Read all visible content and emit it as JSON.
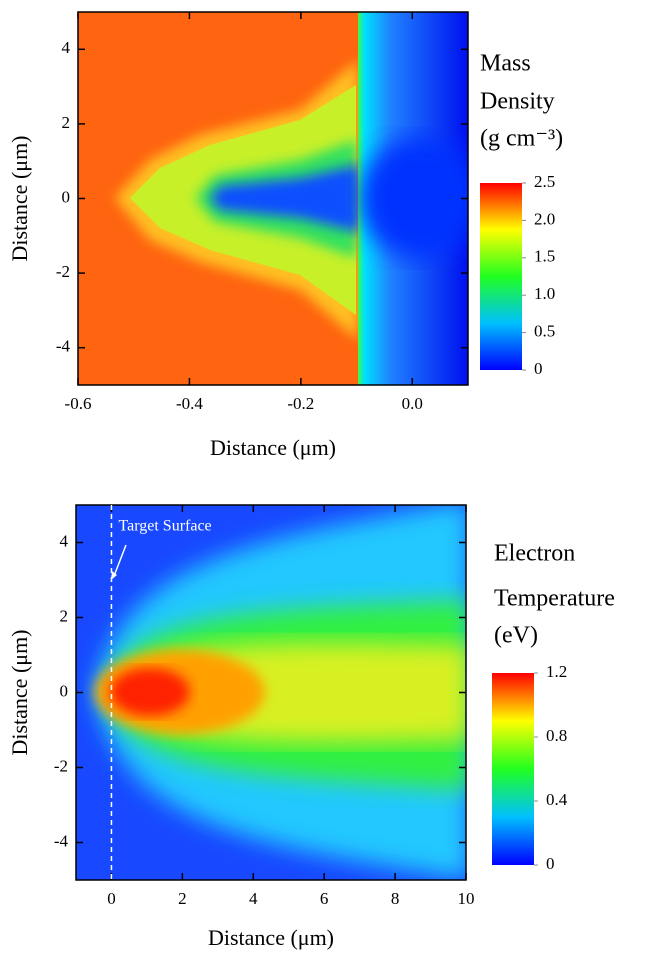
{
  "chart_data": [
    {
      "type": "heatmap",
      "xlabel": "Distance (μm)",
      "ylabel": "Distance (μm)",
      "xlim": [
        -0.6,
        0.1
      ],
      "xticks": [
        -0.6,
        -0.4,
        -0.2,
        {
          "value": 0,
          "label": "0.0"
        }
      ],
      "ylim": [
        -5,
        5
      ],
      "yticks": [
        -4,
        -2,
        0,
        2,
        4
      ],
      "colorbar_title": [
        "Mass",
        "Density",
        "(g cm⁻³)"
      ],
      "colorbar_lim": [
        0,
        2.5
      ],
      "colorbar_ticks": [
        0,
        {
          "value": 0.5,
          "label": "0.5"
        },
        {
          "value": 1,
          "label": "1.0"
        },
        {
          "value": 1.5,
          "label": "1.5"
        },
        {
          "value": 2,
          "label": "2.0"
        },
        {
          "value": 2.5,
          "label": "2.5"
        }
      ]
    },
    {
      "type": "heatmap",
      "xlabel": "Distance (μm)",
      "ylabel": "Distance (μm)",
      "xlim": [
        -1,
        10
      ],
      "xticks": [
        0,
        2,
        4,
        6,
        8,
        10
      ],
      "ylim": [
        -5,
        5
      ],
      "yticks": [
        -4,
        -2,
        0,
        2,
        4
      ],
      "colorbar_title": [
        "Electron",
        "Temperature",
        "(eV)"
      ],
      "colorbar_lim": [
        0,
        1.2
      ],
      "colorbar_ticks": [
        0,
        {
          "value": 0.4,
          "label": "0.4"
        },
        {
          "value": 0.8,
          "label": "0.8"
        },
        {
          "value": 1.2,
          "label": "1.2"
        }
      ],
      "annotation": {
        "text": "Target Surface",
        "x": 0
      }
    }
  ]
}
